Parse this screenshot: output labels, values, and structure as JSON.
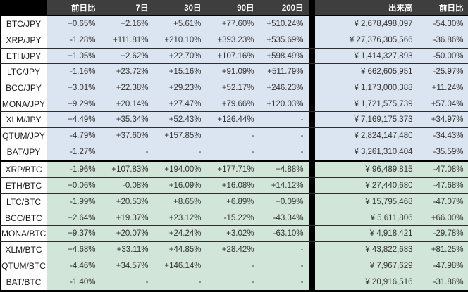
{
  "table": {
    "header": {
      "pair_column": "",
      "columns": [
        "前日比",
        "7日",
        "30日",
        "90日",
        "200日",
        "出来高",
        "前日比"
      ]
    },
    "sections": [
      {
        "id": "jpy",
        "rows": [
          {
            "pair": "BTC/JPY",
            "change_1d": "+0.65%",
            "change_7d": "+2.16%",
            "change_30d": "+5.61%",
            "change_90d": "+77.60%",
            "change_200d": "+510.24%",
            "volume": "¥ 2,678,498,097",
            "volume_change_1d": "-54.30%"
          },
          {
            "pair": "XRP/JPY",
            "change_1d": "-1.28%",
            "change_7d": "+111.81%",
            "change_30d": "+210.10%",
            "change_90d": "+393.23%",
            "change_200d": "+535.69%",
            "volume": "¥ 27,376,305,566",
            "volume_change_1d": "-36.86%"
          },
          {
            "pair": "ETH/JPY",
            "change_1d": "+1.05%",
            "change_7d": "+2.62%",
            "change_30d": "+22.70%",
            "change_90d": "+107.16%",
            "change_200d": "+598.49%",
            "volume": "¥ 1,414,327,893",
            "volume_change_1d": "-50.00%"
          },
          {
            "pair": "LTC/JPY",
            "change_1d": "-1.16%",
            "change_7d": "+23.72%",
            "change_30d": "+15.16%",
            "change_90d": "+91.09%",
            "change_200d": "+511.79%",
            "volume": "¥ 662,605,951",
            "volume_change_1d": "-25.97%"
          },
          {
            "pair": "BCC/JPY",
            "change_1d": "+3.01%",
            "change_7d": "+22.38%",
            "change_30d": "+29.23%",
            "change_90d": "+52.17%",
            "change_200d": "+246.23%",
            "volume": "¥ 1,173,000,388",
            "volume_change_1d": "+11.24%"
          },
          {
            "pair": "MONA/JPY",
            "change_1d": "+9.29%",
            "change_7d": "+20.14%",
            "change_30d": "+27.47%",
            "change_90d": "+79.66%",
            "change_200d": "+120.03%",
            "volume": "¥ 1,721,575,739",
            "volume_change_1d": "+57.04%"
          },
          {
            "pair": "XLM/JPY",
            "change_1d": "+4.49%",
            "change_7d": "+35.34%",
            "change_30d": "+52.43%",
            "change_90d": "+126.44%",
            "change_200d": "-",
            "volume": "¥ 7,169,175,373",
            "volume_change_1d": "+34.97%"
          },
          {
            "pair": "QTUM/JPY",
            "change_1d": "-4.79%",
            "change_7d": "+37.60%",
            "change_30d": "+157.85%",
            "change_90d": "-",
            "change_200d": "-",
            "volume": "¥ 2,824,147,480",
            "volume_change_1d": "-34.43%"
          },
          {
            "pair": "BAT/JPY",
            "change_1d": "-1.27%",
            "change_7d": "-",
            "change_30d": "-",
            "change_90d": "-",
            "change_200d": "-",
            "volume": "¥ 3,261,310,404",
            "volume_change_1d": "-35.59%"
          }
        ]
      },
      {
        "id": "btc",
        "rows": [
          {
            "pair": "XRP/BTC",
            "change_1d": "-1.96%",
            "change_7d": "+107.83%",
            "change_30d": "+194.00%",
            "change_90d": "+177.71%",
            "change_200d": "+4.88%",
            "volume": "¥ 96,489,815",
            "volume_change_1d": "-47.08%"
          },
          {
            "pair": "ETH/BTC",
            "change_1d": "+0.06%",
            "change_7d": "-0.08%",
            "change_30d": "+16.09%",
            "change_90d": "+16.08%",
            "change_200d": "+14.12%",
            "volume": "¥ 27,440,680",
            "volume_change_1d": "-47.68%"
          },
          {
            "pair": "LTC/BTC",
            "change_1d": "-1.99%",
            "change_7d": "+20.53%",
            "change_30d": "+8.65%",
            "change_90d": "+6.89%",
            "change_200d": "+0.09%",
            "volume": "¥ 15,795,468",
            "volume_change_1d": "-47.07%"
          },
          {
            "pair": "BCC/BTC",
            "change_1d": "+2.64%",
            "change_7d": "+19.37%",
            "change_30d": "+23.12%",
            "change_90d": "-15.22%",
            "change_200d": "-43.34%",
            "volume": "¥ 5,611,806",
            "volume_change_1d": "+66.00%"
          },
          {
            "pair": "MONA/BTC",
            "change_1d": "+9.37%",
            "change_7d": "+20.07%",
            "change_30d": "+24.24%",
            "change_90d": "+3.02%",
            "change_200d": "-63.10%",
            "volume": "¥ 4,918,421",
            "volume_change_1d": "-29.78%"
          },
          {
            "pair": "XLM/BTC",
            "change_1d": "+4.68%",
            "change_7d": "+33.11%",
            "change_30d": "+44.85%",
            "change_90d": "+28.42%",
            "change_200d": "-",
            "volume": "¥ 43,822,683",
            "volume_change_1d": "+81.25%"
          },
          {
            "pair": "QTUM/BTC",
            "change_1d": "-4.46%",
            "change_7d": "+34.57%",
            "change_30d": "+146.14%",
            "change_90d": "-",
            "change_200d": "-",
            "volume": "¥ 7,967,629",
            "volume_change_1d": "-47.98%"
          },
          {
            "pair": "BAT/BTC",
            "change_1d": "-1.40%",
            "change_7d": "-",
            "change_30d": "-",
            "change_90d": "-",
            "change_200d": "-",
            "volume": "¥ 20,916,516",
            "volume_change_1d": "-31.86%"
          }
        ]
      }
    ]
  },
  "colors": {
    "header_bg": "#3e3e3e",
    "header_corner_bg": "#000000",
    "header_text": "#ffffff",
    "jpy_row_bg": "#dbe5f1",
    "btc_row_bg": "#d1e5d8",
    "pair_label_bg": "#ffffff",
    "cell_text": "#333333",
    "section_divider": "#000000"
  }
}
